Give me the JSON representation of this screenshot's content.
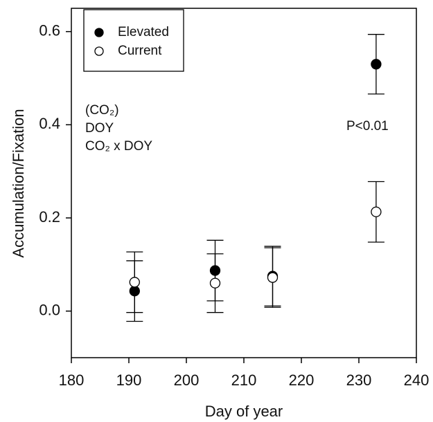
{
  "chart_data": {
    "type": "scatter",
    "x_label": "Day of year",
    "y_label": "Accumulation/Fixation",
    "x": [
      191,
      205,
      215,
      233
    ],
    "series": [
      {
        "name": "Elevated",
        "color": "#000000",
        "values": [
          0.043,
          0.087,
          0.075,
          0.53
        ],
        "errors": [
          0.065,
          0.065,
          0.064,
          0.064
        ]
      },
      {
        "name": "Current",
        "color": "#ffffff",
        "values": [
          0.062,
          0.06,
          0.072,
          0.213
        ],
        "errors": [
          0.065,
          0.063,
          0.064,
          0.065
        ]
      }
    ],
    "xlim": [
      180,
      240
    ],
    "xticks": [
      180,
      190,
      200,
      210,
      220,
      230,
      240
    ],
    "ylim": [
      -0.1,
      0.65
    ],
    "yticks": [
      {
        "value": 0,
        "label": "0.0"
      },
      {
        "value": 0.2,
        "label": "0.2"
      },
      {
        "value": 0.4,
        "label": "0.4"
      },
      {
        "value": 0.6,
        "label": "0.6"
      }
    ],
    "annotations": [
      "(CO₂)",
      "DOY",
      "CO₂ x DOY",
      "P<0.01"
    ],
    "legend": "upper left"
  }
}
